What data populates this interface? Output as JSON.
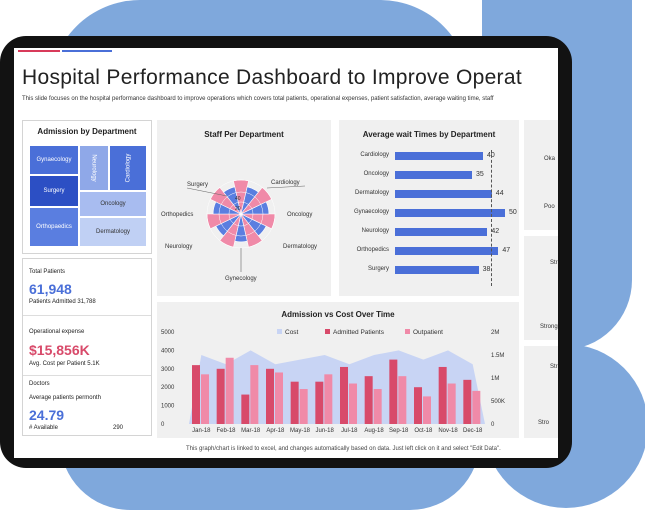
{
  "header": {
    "title": "Hospital Performance Dashboard to Improve Operat",
    "subtitle": "This slide focuses on the hospital performance dashboard to improve operations which covers total patients, operational expenses, patient satisfaction, average waiting time, staff"
  },
  "admission_by_department": {
    "title": "Admission  by Department",
    "cells": [
      "Gynaecology",
      "Neurology",
      "Cardiology",
      "Surgery",
      "Oncology",
      "Orthopaedics",
      "Dermatology"
    ]
  },
  "kpis": {
    "total_patients_label": "Total Patients",
    "total_patients_value": "61,948",
    "patients_admitted": "Patients Admitted 31,788",
    "opex_label": "Operational expense",
    "opex_value": "$15,856K",
    "avg_cost": "Avg. Cost per Patient   5.1K",
    "doctors_label": "Doctors",
    "avg_patients_label": "Average patients permonth",
    "avg_patients_value": "24.79",
    "available_label": "# Available",
    "available_value": "290"
  },
  "staff_per_department": {
    "title": "Staff Per Department",
    "labels": [
      "Surgery",
      "Cardiology",
      "Orthopedics",
      "Oncology",
      "Neurology",
      "Dermatology",
      "Gynecology"
    ],
    "ticks": [
      "40",
      "20"
    ]
  },
  "chart_data": [
    {
      "type": "bar",
      "title": "Average wait Times by Department",
      "categories": [
        "Cardiology",
        "Oncology",
        "Dermatology",
        "Gynaecology",
        "Neurology",
        "Orthopedics",
        "Surgery"
      ],
      "values": [
        40,
        35,
        44,
        50,
        42,
        47,
        38
      ]
    },
    {
      "type": "bar",
      "title": "Admission  vs Cost Over Time",
      "categories": [
        "Jan-18",
        "Feb-18",
        "Mar-18",
        "Apr-18",
        "May-18",
        "Jun-18",
        "Jul-18",
        "Aug-18",
        "Sep-18",
        "Oct-18",
        "Nov-18",
        "Dec-18"
      ],
      "series": [
        {
          "name": "Cost",
          "type": "area",
          "values": [
            1.5,
            1.3,
            1.6,
            1.3,
            1.4,
            1.5,
            1.3,
            1.5,
            1.6,
            1.4,
            1.6,
            1.3
          ]
        },
        {
          "name": "Admitted Patients",
          "values": [
            3200,
            3000,
            1600,
            3000,
            2300,
            2300,
            3100,
            2600,
            3500,
            2000,
            3100,
            2400
          ]
        },
        {
          "name": "Outpatient",
          "values": [
            2700,
            3600,
            3200,
            2800,
            1900,
            2700,
            2200,
            1900,
            2600,
            1500,
            2200,
            1800
          ]
        }
      ],
      "yleft_ticks": [
        "5000",
        "4000",
        "3000",
        "2000",
        "1000",
        "0"
      ],
      "yright_ticks": [
        "2M",
        "1.5M",
        "1M",
        "500K",
        "0"
      ],
      "colors": {
        "admitted": "#d84a6a",
        "outpatient": "#f08aa8",
        "cost": "#c8d4f4"
      }
    }
  ],
  "right_panels": {
    "okay": "Oka",
    "poor": "Poo",
    "str1": "Str",
    "strong": "Strong",
    "str2": "Str",
    "stro": "Stro"
  },
  "footer": "This graph/chart is linked to excel, and changes automatically based on data. Just left click on it and select \"Edit Data\"."
}
